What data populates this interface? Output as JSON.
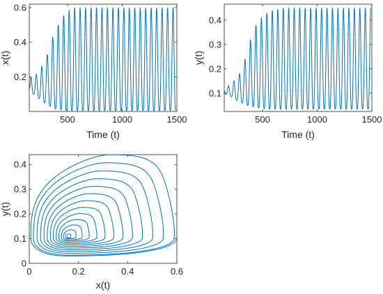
{
  "chart_data": [
    {
      "type": "line",
      "title": "",
      "xlabel": "Time (t)",
      "ylabel": "x(t)",
      "xlim": [
        150,
        1500
      ],
      "ylim": [
        0,
        0.62
      ],
      "xticks": [
        500,
        1000,
        1500
      ],
      "xtick_labels": [
        "500",
        "1000",
        "1500"
      ],
      "yticks": [
        0.2,
        0.4,
        0.6
      ],
      "ytick_labels": [
        "0.2",
        "0.4",
        "0.6"
      ],
      "grid": false,
      "line_color": "#0072BD",
      "series": [
        {
          "description_free": true,
          "period": 50,
          "x_start": 150,
          "x_end": 1500,
          "peaks": [
            [
              165,
              0.2
            ],
            [
              215,
              0.215
            ],
            [
              265,
              0.26
            ],
            [
              315,
              0.33
            ],
            [
              365,
              0.43
            ],
            [
              415,
              0.5
            ],
            [
              465,
              0.555
            ],
            [
              515,
              0.585
            ],
            [
              565,
              0.6
            ],
            [
              615,
              0.6
            ],
            [
              665,
              0.6
            ],
            [
              715,
              0.6
            ],
            [
              765,
              0.6
            ],
            [
              815,
              0.6
            ],
            [
              865,
              0.6
            ],
            [
              915,
              0.6
            ],
            [
              965,
              0.6
            ],
            [
              1015,
              0.6
            ],
            [
              1065,
              0.6
            ],
            [
              1115,
              0.6
            ],
            [
              1165,
              0.6
            ],
            [
              1215,
              0.6
            ],
            [
              1265,
              0.6
            ],
            [
              1315,
              0.6
            ],
            [
              1365,
              0.6
            ],
            [
              1415,
              0.6
            ],
            [
              1465,
              0.6
            ]
          ],
          "troughs": [
            [
              150,
              0.13
            ],
            [
              190,
              0.1
            ],
            [
              240,
              0.075
            ],
            [
              290,
              0.05
            ],
            [
              340,
              0.03
            ],
            [
              390,
              0.015
            ],
            [
              440,
              0.01
            ],
            [
              490,
              0.006
            ],
            [
              540,
              0.005
            ],
            [
              590,
              0.005
            ],
            [
              640,
              0.005
            ],
            [
              690,
              0.005
            ],
            [
              740,
              0.005
            ],
            [
              790,
              0.005
            ],
            [
              840,
              0.005
            ],
            [
              890,
              0.005
            ],
            [
              940,
              0.005
            ],
            [
              990,
              0.005
            ],
            [
              1040,
              0.005
            ],
            [
              1090,
              0.005
            ],
            [
              1140,
              0.005
            ],
            [
              1190,
              0.005
            ],
            [
              1240,
              0.005
            ],
            [
              1290,
              0.005
            ],
            [
              1340,
              0.005
            ],
            [
              1390,
              0.005
            ],
            [
              1440,
              0.005
            ],
            [
              1490,
              0.005
            ]
          ]
        }
      ]
    },
    {
      "type": "line",
      "title": "",
      "xlabel": "Time (t)",
      "ylabel": "y(t)",
      "xlim": [
        150,
        1500
      ],
      "ylim": [
        0.025,
        0.465
      ],
      "xticks": [
        500,
        1000,
        1500
      ],
      "xtick_labels": [
        "500",
        "1000",
        "1500"
      ],
      "yticks": [
        0.1,
        0.2,
        0.3,
        0.4
      ],
      "ytick_labels": [
        "0.1",
        "0.2",
        "0.3",
        "0.4"
      ],
      "grid": false,
      "line_color": "#0072BD",
      "series": [
        {
          "period": 50,
          "x_start": 150,
          "x_end": 1500,
          "peaks": [
            [
              190,
              0.13
            ],
            [
              240,
              0.15
            ],
            [
              290,
              0.18
            ],
            [
              340,
              0.24
            ],
            [
              390,
              0.32
            ],
            [
              440,
              0.38
            ],
            [
              490,
              0.41
            ],
            [
              540,
              0.43
            ],
            [
              590,
              0.44
            ],
            [
              640,
              0.445
            ],
            [
              690,
              0.45
            ],
            [
              740,
              0.45
            ],
            [
              790,
              0.45
            ],
            [
              840,
              0.45
            ],
            [
              890,
              0.45
            ],
            [
              940,
              0.45
            ],
            [
              990,
              0.45
            ],
            [
              1040,
              0.45
            ],
            [
              1090,
              0.45
            ],
            [
              1140,
              0.45
            ],
            [
              1190,
              0.45
            ],
            [
              1240,
              0.45
            ],
            [
              1290,
              0.45
            ],
            [
              1340,
              0.45
            ],
            [
              1390,
              0.45
            ],
            [
              1440,
              0.45
            ],
            [
              1490,
              0.45
            ]
          ],
          "troughs": [
            [
              150,
              0.11
            ],
            [
              165,
              0.095
            ],
            [
              215,
              0.085
            ],
            [
              265,
              0.07
            ],
            [
              315,
              0.06
            ],
            [
              365,
              0.05
            ],
            [
              415,
              0.045
            ],
            [
              465,
              0.04
            ],
            [
              515,
              0.037
            ],
            [
              565,
              0.035
            ],
            [
              615,
              0.035
            ],
            [
              665,
              0.035
            ],
            [
              715,
              0.035
            ],
            [
              765,
              0.035
            ],
            [
              815,
              0.035
            ],
            [
              865,
              0.035
            ],
            [
              915,
              0.035
            ],
            [
              965,
              0.035
            ],
            [
              1015,
              0.035
            ],
            [
              1065,
              0.035
            ],
            [
              1115,
              0.035
            ],
            [
              1165,
              0.035
            ],
            [
              1215,
              0.035
            ],
            [
              1265,
              0.035
            ],
            [
              1315,
              0.035
            ],
            [
              1365,
              0.035
            ],
            [
              1415,
              0.035
            ],
            [
              1465,
              0.035
            ]
          ]
        }
      ]
    },
    {
      "type": "line",
      "title": "",
      "xlabel": "x(t)",
      "ylabel": "y(t)",
      "xlim": [
        0,
        0.6
      ],
      "ylim": [
        0,
        0.44
      ],
      "xticks": [
        0,
        0.2,
        0.4,
        0.6
      ],
      "xtick_labels": [
        "0",
        "0.2",
        "0.4",
        "0.6"
      ],
      "yticks": [
        0,
        0.1,
        0.2,
        0.3,
        0.4
      ],
      "ytick_labels": [
        "0",
        "0.1",
        "0.2",
        "0.3",
        "0.4"
      ],
      "grid": false,
      "line_color": "#0072BD",
      "series": [
        {
          "phase_portrait": true,
          "center": [
            0.155,
            0.105
          ],
          "limit_cycle": {
            "right": [
              0.6,
              0.09
            ],
            "top": [
              0.33,
              0.44
            ],
            "left": [
              0.006,
              0.09
            ],
            "bottom": [
              0.05,
              0.03
            ]
          }
        }
      ]
    }
  ]
}
